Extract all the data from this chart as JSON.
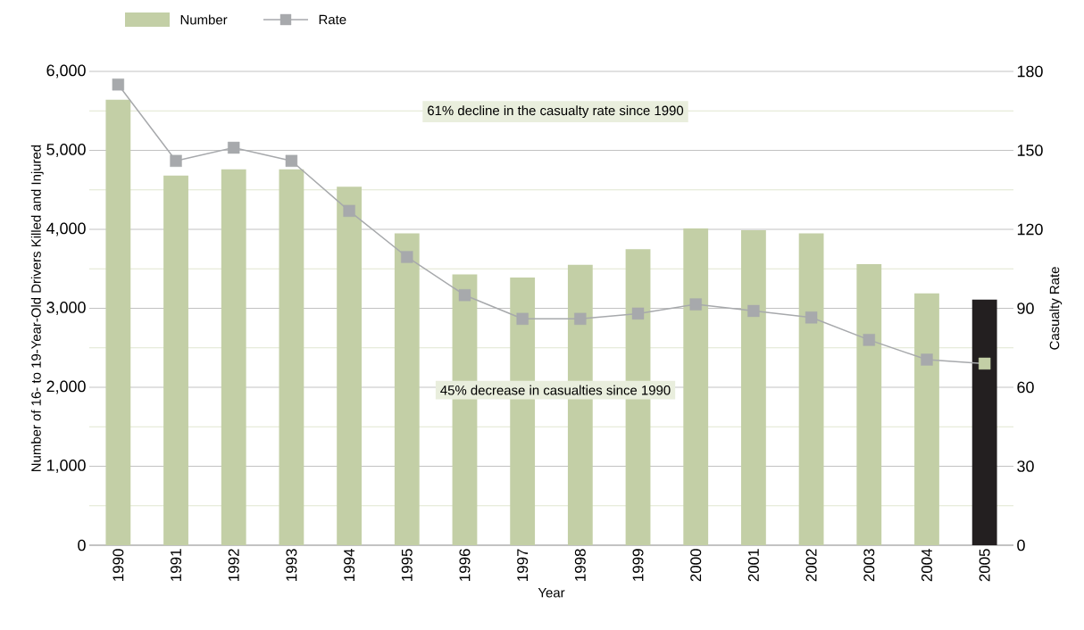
{
  "chart_data": {
    "type": "bar",
    "xlabel": "Year",
    "ylabel": "Number of 16- to 19-Year-Old Drivers Killed and Injured",
    "y2label": "Casualty Rate",
    "categories": [
      "1990",
      "1991",
      "1992",
      "1993",
      "1994",
      "1995",
      "1996",
      "1997",
      "1998",
      "1999",
      "2000",
      "2001",
      "2002",
      "2003",
      "2004",
      "2005"
    ],
    "series": [
      {
        "name": "Number",
        "color": "#c3cfa6",
        "colors": [
          "#c3cfa6",
          "#c3cfa6",
          "#c3cfa6",
          "#c3cfa6",
          "#c3cfa6",
          "#c3cfa6",
          "#c3cfa6",
          "#c3cfa6",
          "#c3cfa6",
          "#c3cfa6",
          "#c3cfa6",
          "#c3cfa6",
          "#c3cfa6",
          "#c3cfa6",
          "#c3cfa6",
          "#231f20"
        ],
        "values": [
          5640,
          4680,
          4760,
          4760,
          4540,
          3950,
          3430,
          3390,
          3550,
          3750,
          4010,
          3990,
          3950,
          3560,
          3190,
          3110
        ]
      },
      {
        "name": "Rate",
        "type": "line",
        "axis": "y2",
        "color": "#a7a9ac",
        "colors": [
          "#a7a9ac",
          "#a7a9ac",
          "#a7a9ac",
          "#a7a9ac",
          "#a7a9ac",
          "#a7a9ac",
          "#a7a9ac",
          "#a7a9ac",
          "#a7a9ac",
          "#a7a9ac",
          "#a7a9ac",
          "#a7a9ac",
          "#a7a9ac",
          "#a7a9ac",
          "#a7a9ac",
          "#c3cfa6"
        ],
        "values": [
          175,
          146,
          151,
          146,
          127,
          109.5,
          95,
          86,
          86,
          88,
          91.5,
          89,
          86.5,
          78,
          70.5,
          69
        ]
      }
    ],
    "ylim": [
      0,
      6000
    ],
    "yticks": [
      0,
      {
        "value": 1000,
        "label": "1,000"
      },
      {
        "value": 2000,
        "label": "2,000"
      },
      {
        "value": 3000,
        "label": "3,000"
      },
      {
        "value": 4000,
        "label": "4,000"
      },
      {
        "value": 5000,
        "label": "5,000"
      },
      {
        "value": 6000,
        "label": "6,000"
      }
    ],
    "y2lim": [
      0,
      180
    ],
    "y2ticks": [
      0,
      30,
      60,
      90,
      120,
      150,
      180
    ],
    "grid": "y",
    "legend": "top left",
    "marker": "square",
    "annotations": [
      "61% decline in the casualty rate since 1990",
      "45% decrease in casualties since 1990"
    ]
  }
}
